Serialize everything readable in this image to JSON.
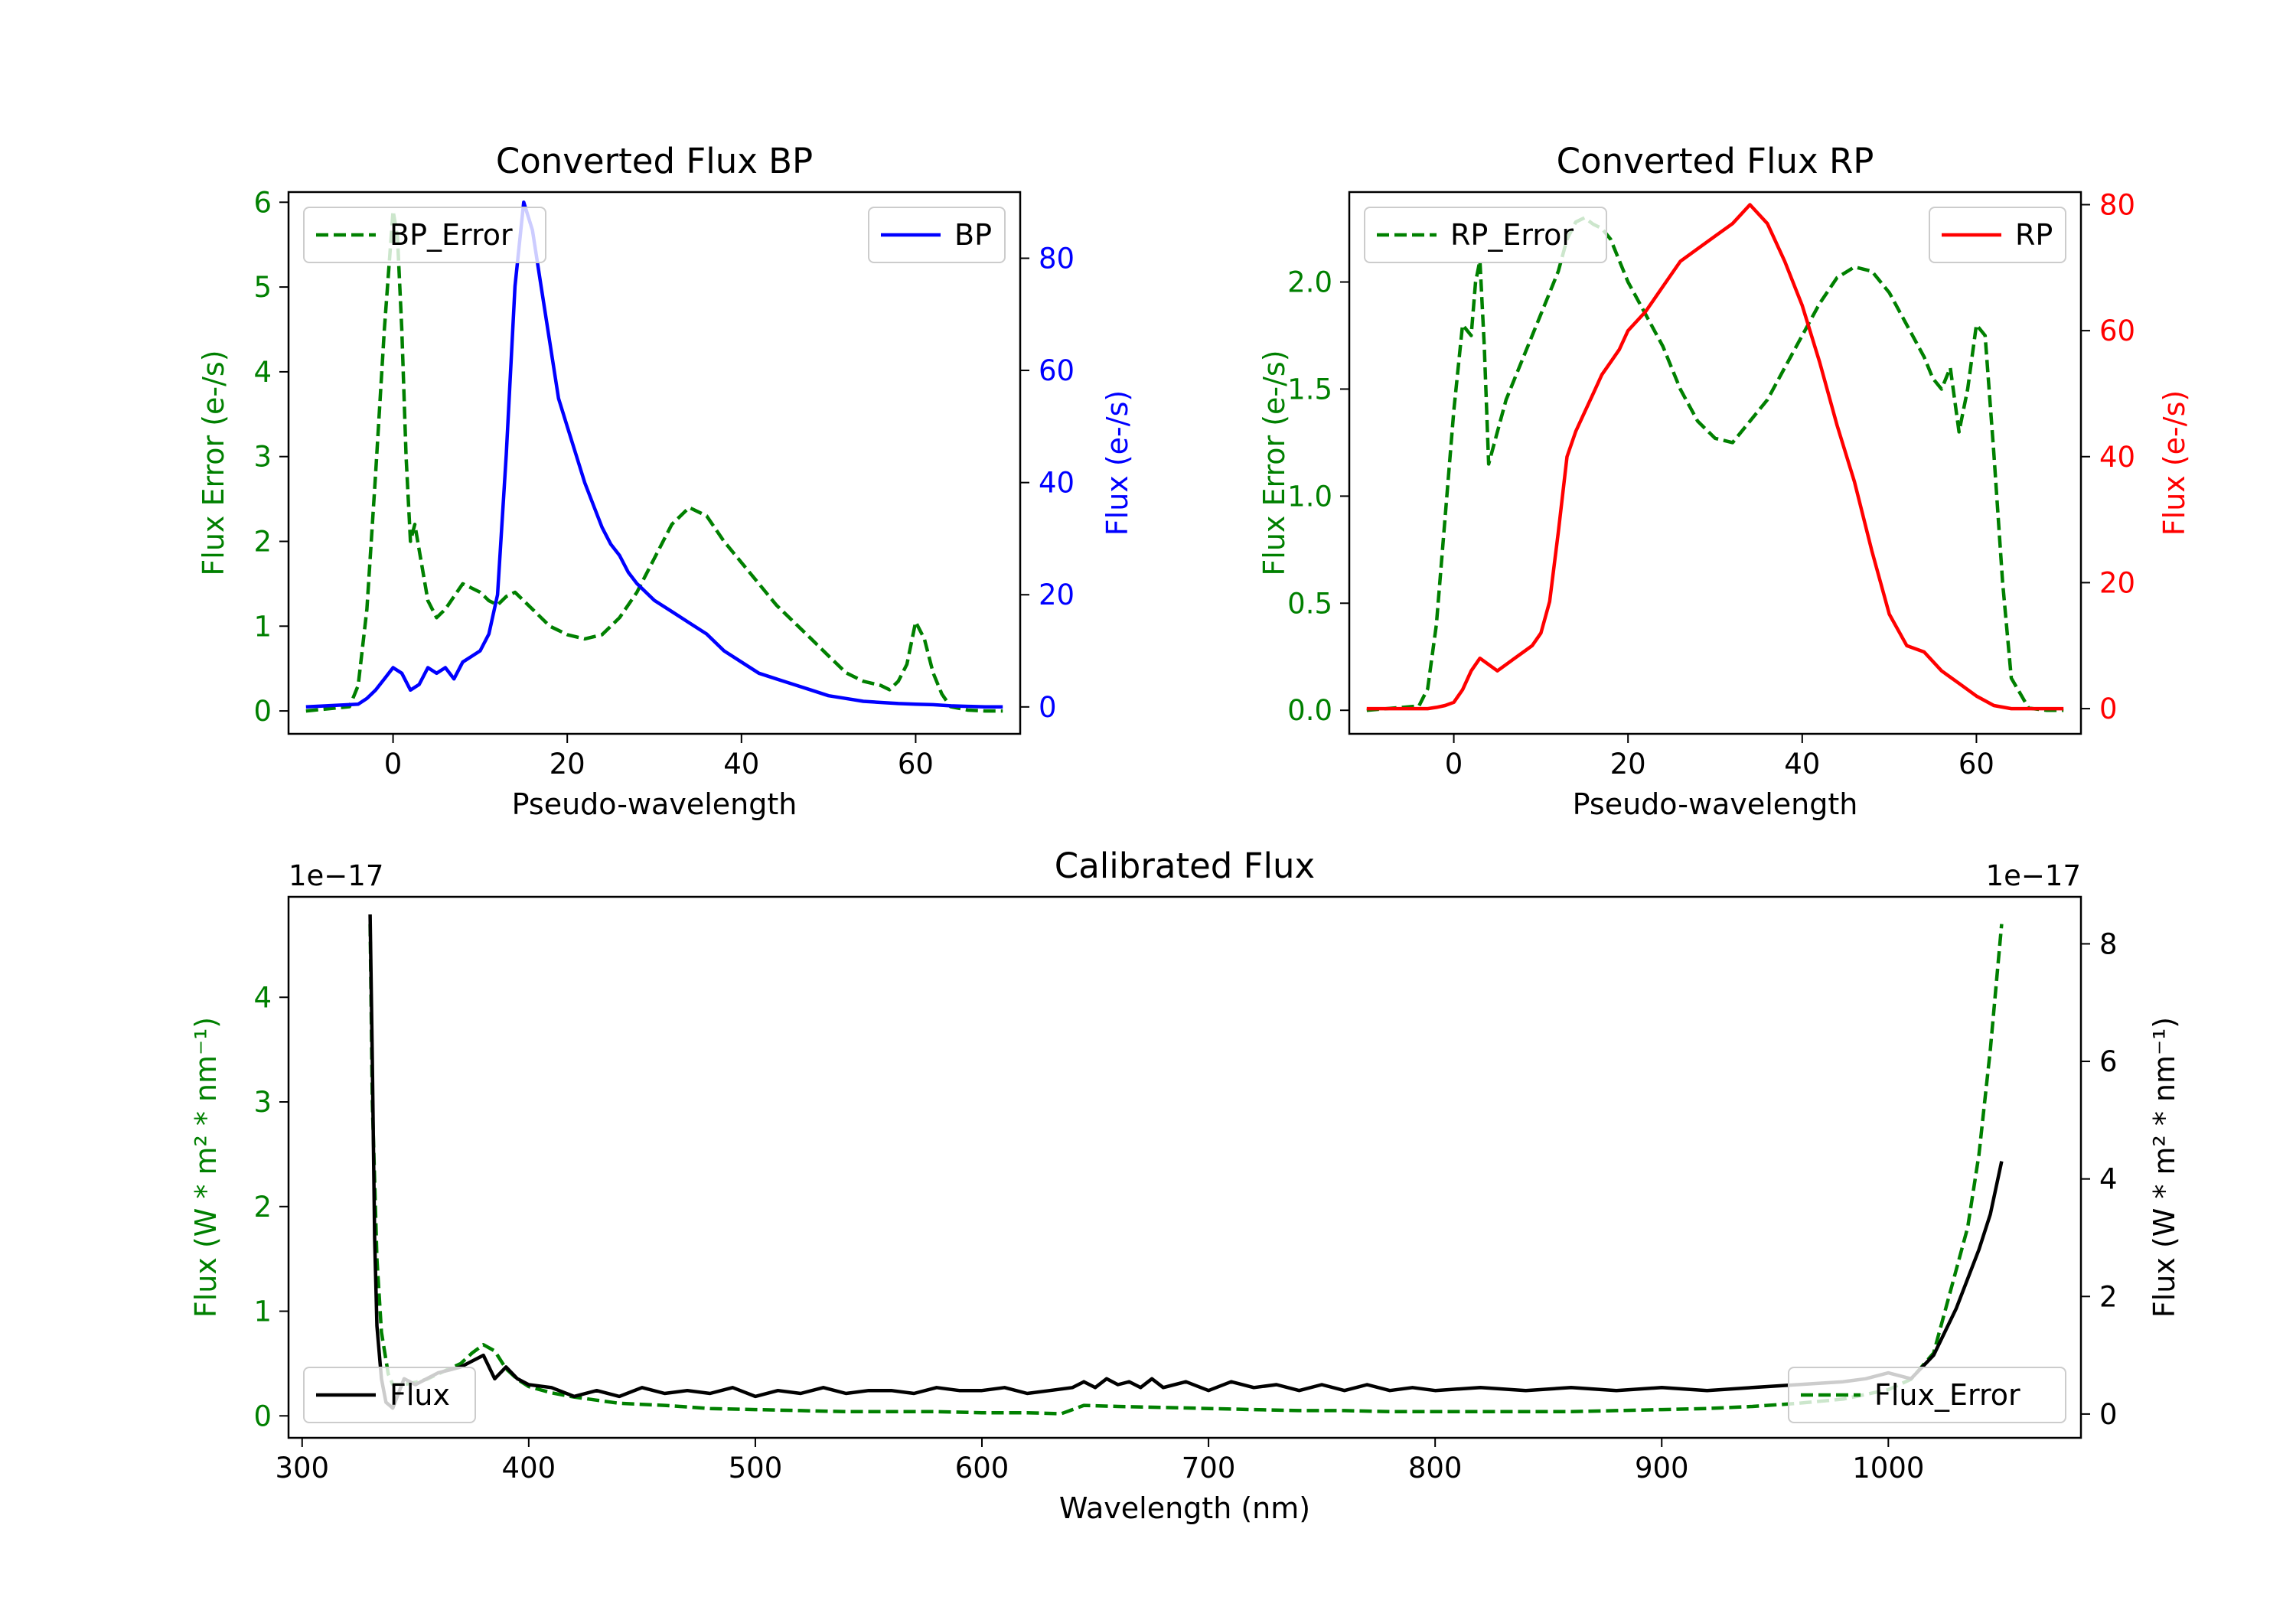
{
  "chart_data": [
    {
      "id": "bp",
      "type": "line",
      "title": "Converted Flux BP",
      "xlabel": "Pseudo-wavelength",
      "ylabel_left": "Flux Error (e-/s)",
      "ylabel_right": "Flux (e-/s)",
      "xlim": [
        -12,
        72
      ],
      "ylim_left": [
        -0.27,
        6.12
      ],
      "ylim_right": [
        -4.8,
        91.8
      ],
      "xticks": [
        0,
        20,
        40,
        60
      ],
      "yticks_left": [
        0,
        1,
        2,
        3,
        4,
        5,
        6
      ],
      "yticks_right": [
        0,
        20,
        40,
        60,
        80
      ],
      "legend_left": {
        "label": "BP_Error",
        "position": "upper left"
      },
      "legend_right": {
        "label": "BP",
        "position": "upper right"
      },
      "series": [
        {
          "name": "BP_Error",
          "axis": "left",
          "style": "dashed",
          "color": "#008000",
          "x": [
            -10,
            -5,
            -4,
            -3,
            -2,
            -1,
            0,
            0.5,
            1,
            1.5,
            2,
            2.5,
            3,
            3.5,
            4,
            5,
            6,
            7,
            8,
            9,
            10,
            11,
            12,
            13,
            14,
            15,
            16,
            17,
            18,
            19,
            20,
            22,
            24,
            26,
            28,
            30,
            32,
            34,
            36,
            38,
            40,
            42,
            44,
            46,
            48,
            50,
            52,
            54,
            56,
            57,
            58,
            59,
            60,
            61,
            62,
            63,
            64,
            66,
            68,
            70
          ],
          "y": [
            0,
            0.05,
            0.3,
            1.2,
            2.8,
            4.5,
            5.9,
            5.6,
            4.5,
            3.0,
            2.0,
            2.2,
            1.9,
            1.6,
            1.3,
            1.1,
            1.2,
            1.35,
            1.5,
            1.45,
            1.4,
            1.3,
            1.25,
            1.35,
            1.4,
            1.3,
            1.2,
            1.1,
            1.0,
            0.95,
            0.9,
            0.85,
            0.9,
            1.1,
            1.4,
            1.8,
            2.2,
            2.4,
            2.3,
            2.0,
            1.75,
            1.5,
            1.25,
            1.05,
            0.85,
            0.65,
            0.45,
            0.35,
            0.3,
            0.25,
            0.35,
            0.55,
            1.05,
            0.85,
            0.45,
            0.2,
            0.05,
            0.01,
            0,
            0
          ]
        },
        {
          "name": "BP",
          "axis": "right",
          "style": "solid",
          "color": "#0000ff",
          "x": [
            -10,
            -4,
            -3,
            -2,
            -1,
            0,
            1,
            2,
            3,
            4,
            5,
            6,
            7,
            8,
            9,
            10,
            11,
            12,
            13,
            14,
            15,
            16,
            17,
            18,
            19,
            20,
            21,
            22,
            23,
            24,
            25,
            26,
            27,
            28,
            30,
            32,
            34,
            36,
            38,
            40,
            42,
            44,
            46,
            48,
            50,
            52,
            54,
            56,
            58,
            60,
            62,
            64,
            66,
            68,
            70
          ],
          "y": [
            0,
            0.5,
            1.5,
            3,
            5,
            7,
            6,
            3,
            4,
            7,
            6,
            7,
            5,
            8,
            9,
            10,
            13,
            20,
            45,
            75,
            90,
            85,
            75,
            65,
            55,
            50,
            45,
            40,
            36,
            32,
            29,
            27,
            24,
            22,
            19,
            17,
            15,
            13,
            10,
            8,
            6,
            5,
            4,
            3,
            2,
            1.5,
            1,
            0.8,
            0.6,
            0.5,
            0.4,
            0.2,
            0.1,
            0,
            0
          ]
        }
      ]
    },
    {
      "id": "rp",
      "type": "line",
      "title": "Converted Flux RP",
      "xlabel": "Pseudo-wavelength",
      "ylabel_left": "Flux Error (e-/s)",
      "ylabel_right": "Flux (e-/s)",
      "xlim": [
        -12,
        72
      ],
      "ylim_left": [
        -0.11,
        2.42
      ],
      "ylim_right": [
        -4,
        82
      ],
      "xticks": [
        0,
        20,
        40,
        60
      ],
      "yticks_left": [
        0.0,
        0.5,
        1.0,
        1.5,
        2.0
      ],
      "yticks_right": [
        0,
        20,
        40,
        60,
        80
      ],
      "legend_left": {
        "label": "RP_Error",
        "position": "upper left"
      },
      "legend_right": {
        "label": "RP",
        "position": "upper right"
      },
      "series": [
        {
          "name": "RP_Error",
          "axis": "left",
          "style": "dashed",
          "color": "#008000",
          "x": [
            -10,
            -4,
            -3,
            -2,
            -1,
            0,
            1,
            2,
            2.5,
            3,
            3.5,
            4,
            5,
            6,
            7,
            8,
            9,
            10,
            11,
            12,
            13,
            14,
            15,
            16,
            17,
            18,
            19,
            20,
            22,
            24,
            26,
            28,
            30,
            32,
            34,
            36,
            38,
            40,
            42,
            44,
            46,
            48,
            50,
            52,
            54,
            55,
            56,
            57,
            58,
            59,
            60,
            61,
            62,
            63,
            64,
            66,
            68,
            70
          ],
          "y": [
            0,
            0.02,
            0.1,
            0.4,
            0.9,
            1.4,
            1.8,
            1.75,
            2.0,
            2.1,
            1.7,
            1.15,
            1.3,
            1.45,
            1.55,
            1.65,
            1.75,
            1.85,
            1.95,
            2.05,
            2.2,
            2.28,
            2.3,
            2.27,
            2.25,
            2.2,
            2.1,
            2.0,
            1.85,
            1.7,
            1.5,
            1.35,
            1.27,
            1.25,
            1.35,
            1.45,
            1.6,
            1.75,
            1.9,
            2.02,
            2.07,
            2.05,
            1.95,
            1.8,
            1.65,
            1.55,
            1.5,
            1.6,
            1.3,
            1.5,
            1.8,
            1.75,
            1.2,
            0.6,
            0.15,
            0.01,
            0,
            0
          ]
        },
        {
          "name": "RP",
          "axis": "right",
          "style": "solid",
          "color": "#ff0000",
          "x": [
            -10,
            -3,
            -2,
            -1,
            0,
            1,
            2,
            3,
            4,
            5,
            6,
            7,
            8,
            9,
            10,
            11,
            12,
            13,
            14,
            15,
            16,
            17,
            18,
            19,
            20,
            22,
            24,
            26,
            28,
            30,
            32,
            34,
            36,
            38,
            40,
            42,
            44,
            46,
            48,
            50,
            52,
            54,
            56,
            58,
            60,
            62,
            64,
            66,
            68,
            70
          ],
          "y": [
            0,
            0,
            0.2,
            0.5,
            1,
            3,
            6,
            8,
            7,
            6,
            7,
            8,
            9,
            10,
            12,
            17,
            28,
            40,
            44,
            47,
            50,
            53,
            55,
            57,
            60,
            63,
            67,
            71,
            73,
            75,
            77,
            80,
            77,
            71,
            64,
            55,
            45,
            36,
            25,
            15,
            10,
            9,
            6,
            4,
            2,
            0.5,
            0,
            0,
            0,
            0
          ]
        }
      ]
    },
    {
      "id": "calibrated",
      "type": "line",
      "title": "Calibrated Flux",
      "xlabel": "Wavelength (nm)",
      "ylabel_left": "Flux (W * m² * nm⁻¹)",
      "ylabel_right": "Flux (W * m² * nm⁻¹)",
      "offset_left": "1e−17",
      "offset_right": "1e−17",
      "xlim": [
        294,
        1085
      ],
      "ylim_left": [
        -0.21,
        4.96
      ],
      "ylim_right": [
        -0.405,
        8.8
      ],
      "xticks": [
        300,
        400,
        500,
        600,
        700,
        800,
        900,
        1000
      ],
      "yticks_left": [
        0,
        1,
        2,
        3,
        4
      ],
      "yticks_right": [
        0,
        2,
        4,
        6,
        8
      ],
      "legend_left": {
        "label": "Flux",
        "position": "lower left"
      },
      "legend_right": {
        "label": "Flux_Error",
        "position": "lower right"
      },
      "series": [
        {
          "name": "Flux_Error",
          "axis": "left",
          "style": "dashed",
          "color": "#008000",
          "x": [
            330,
            331,
            333,
            335,
            338,
            340,
            345,
            350,
            355,
            360,
            365,
            370,
            375,
            380,
            385,
            390,
            395,
            400,
            410,
            420,
            430,
            440,
            460,
            480,
            500,
            520,
            540,
            560,
            580,
            600,
            620,
            635,
            640,
            645,
            660,
            680,
            700,
            720,
            740,
            760,
            780,
            800,
            820,
            840,
            860,
            880,
            900,
            920,
            940,
            960,
            980,
            1000,
            1010,
            1020,
            1025,
            1030,
            1035,
            1040,
            1045,
            1050
          ],
          "y": [
            4.7,
            3.0,
            1.5,
            0.8,
            0.4,
            0.3,
            0.3,
            0.32,
            0.35,
            0.4,
            0.45,
            0.5,
            0.6,
            0.68,
            0.62,
            0.45,
            0.35,
            0.28,
            0.22,
            0.18,
            0.15,
            0.12,
            0.1,
            0.07,
            0.06,
            0.05,
            0.04,
            0.04,
            0.04,
            0.03,
            0.03,
            0.02,
            0.06,
            0.1,
            0.09,
            0.08,
            0.07,
            0.06,
            0.05,
            0.05,
            0.04,
            0.04,
            0.04,
            0.04,
            0.04,
            0.05,
            0.06,
            0.07,
            0.09,
            0.12,
            0.16,
            0.25,
            0.35,
            0.6,
            1.0,
            1.4,
            1.8,
            2.5,
            3.5,
            4.7
          ]
        },
        {
          "name": "Flux",
          "axis": "right",
          "style": "solid",
          "color": "#000000",
          "x": [
            330,
            331,
            332,
            333,
            335,
            337,
            340,
            345,
            350,
            355,
            360,
            365,
            370,
            375,
            380,
            385,
            390,
            395,
            400,
            410,
            420,
            430,
            440,
            450,
            460,
            470,
            480,
            490,
            500,
            510,
            520,
            530,
            540,
            550,
            560,
            570,
            580,
            590,
            600,
            610,
            620,
            630,
            640,
            645,
            650,
            655,
            660,
            665,
            670,
            675,
            680,
            690,
            700,
            710,
            720,
            730,
            740,
            750,
            760,
            770,
            780,
            790,
            800,
            820,
            840,
            860,
            880,
            900,
            920,
            940,
            960,
            980,
            990,
            1000,
            1010,
            1015,
            1020,
            1030,
            1040,
            1045,
            1050
          ],
          "y": [
            8.5,
            6.0,
            3.0,
            1.5,
            0.6,
            0.2,
            0.1,
            0.6,
            0.5,
            0.6,
            0.7,
            0.75,
            0.8,
            0.9,
            1.0,
            0.6,
            0.8,
            0.6,
            0.5,
            0.45,
            0.3,
            0.4,
            0.3,
            0.45,
            0.35,
            0.4,
            0.35,
            0.45,
            0.3,
            0.4,
            0.35,
            0.45,
            0.35,
            0.4,
            0.4,
            0.35,
            0.45,
            0.4,
            0.4,
            0.45,
            0.35,
            0.4,
            0.45,
            0.55,
            0.45,
            0.6,
            0.5,
            0.55,
            0.45,
            0.6,
            0.45,
            0.55,
            0.4,
            0.55,
            0.45,
            0.5,
            0.4,
            0.5,
            0.4,
            0.5,
            0.4,
            0.45,
            0.4,
            0.45,
            0.4,
            0.45,
            0.4,
            0.45,
            0.4,
            0.45,
            0.5,
            0.55,
            0.6,
            0.7,
            0.6,
            0.8,
            1.0,
            1.8,
            2.8,
            3.4,
            4.3
          ]
        }
      ]
    }
  ]
}
